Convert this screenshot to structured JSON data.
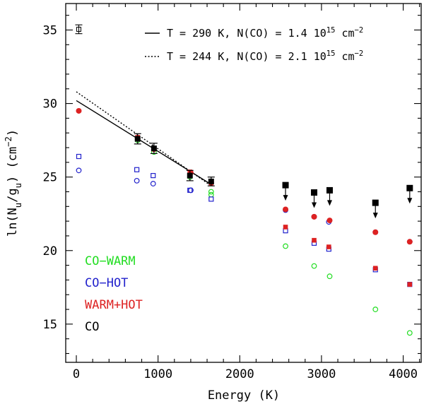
{
  "chart_data": {
    "type": "scatter",
    "xlabel": "Energy (K)",
    "ylabel_parts": [
      "ln(N",
      "u",
      "/g",
      "u",
      ") (cm",
      "−2",
      ")"
    ],
    "xlim": [
      -130,
      4220
    ],
    "ylim": [
      12.4,
      36.8
    ],
    "x_ticks": [
      0,
      1000,
      2000,
      3000,
      4000
    ],
    "y_ticks": [
      15,
      20,
      25,
      30,
      35
    ],
    "x_minor_step": 200,
    "y_minor_step": 1,
    "grid": false,
    "fit_lines": [
      {
        "style": "solid",
        "label_parts": [
          "T = 290 K, N(CO) = 1.4 10",
          "15",
          " cm",
          "−2"
        ],
        "points": [
          [
            0,
            30.2
          ],
          [
            1650,
            24.5
          ]
        ]
      },
      {
        "style": "dotted",
        "label_parts": [
          "T = 244 K, N(CO) = 2.1 10",
          "15",
          " cm",
          "−2"
        ],
        "points": [
          [
            0,
            30.8
          ],
          [
            1650,
            24.4
          ]
        ]
      }
    ],
    "series": [
      {
        "name": "CO-WARM",
        "color": "#22dd22",
        "marker": "open-circle",
        "points": [
          [
            750,
            27.5
          ],
          [
            950,
            26.7
          ],
          [
            1390,
            25.0
          ],
          [
            1650,
            24.0
          ],
          [
            1650,
            23.8
          ],
          [
            2560,
            20.3
          ],
          [
            2910,
            18.95
          ],
          [
            3100,
            18.25
          ],
          [
            3660,
            16.0
          ],
          [
            4080,
            14.4
          ]
        ]
      },
      {
        "name": "CO-HOT",
        "color": "#2222cc",
        "marker": "open-circle",
        "points": [
          [
            30,
            25.45
          ],
          [
            740,
            24.75
          ],
          [
            940,
            24.55
          ],
          [
            1400,
            24.1
          ],
          [
            1400,
            24.1
          ],
          [
            2560,
            22.75
          ],
          [
            2910,
            22.3
          ],
          [
            3090,
            21.95
          ],
          [
            3660,
            21.25
          ],
          [
            4080,
            20.6
          ]
        ]
      },
      {
        "name": "CO-HOT",
        "color": "#2222cc",
        "marker": "open-square",
        "points": [
          [
            30,
            26.4
          ],
          [
            740,
            25.5
          ],
          [
            940,
            25.1
          ],
          [
            1390,
            24.1
          ],
          [
            1650,
            23.5
          ],
          [
            2560,
            21.35
          ],
          [
            2910,
            20.5
          ],
          [
            3090,
            20.1
          ],
          [
            3660,
            18.7
          ],
          [
            4080,
            17.7
          ]
        ]
      },
      {
        "name": "WARM+HOT",
        "color": "#dd2222",
        "marker": "filled-circle",
        "points": [
          [
            30,
            29.5
          ],
          [
            750,
            27.6
          ],
          [
            950,
            26.9
          ],
          [
            1400,
            25.3
          ],
          [
            1650,
            24.6
          ],
          [
            2560,
            22.8
          ],
          [
            2910,
            22.3
          ],
          [
            3100,
            22.05
          ],
          [
            3660,
            21.25
          ],
          [
            4080,
            20.6
          ]
        ]
      },
      {
        "name": "WARM+HOT",
        "color": "#dd2222",
        "marker": "filled-square",
        "points": [
          [
            750,
            27.7
          ],
          [
            950,
            26.9
          ],
          [
            1390,
            25.35
          ],
          [
            1650,
            24.6
          ],
          [
            2560,
            21.6
          ],
          [
            2910,
            20.7
          ],
          [
            3090,
            20.25
          ],
          [
            3660,
            18.8
          ],
          [
            4080,
            17.7
          ]
        ]
      },
      {
        "name": "CO",
        "color": "#000000",
        "marker": "filled-square-errorbar",
        "points": [
          [
            750,
            27.6,
            0.35
          ],
          [
            950,
            26.95,
            0.35
          ],
          [
            1390,
            25.1,
            0.35
          ],
          [
            1650,
            24.7,
            0.3
          ]
        ]
      },
      {
        "name": "CO",
        "color": "#000000",
        "marker": "filled-square-upper-limit",
        "points": [
          [
            2560,
            24.45
          ],
          [
            2910,
            23.95
          ],
          [
            3100,
            24.1
          ],
          [
            3660,
            23.25
          ],
          [
            4080,
            24.25
          ]
        ]
      }
    ],
    "error_bar_reference": {
      "x": 30,
      "y": 35.05,
      "err": 0.3
    },
    "group_labels": [
      {
        "text": "CO−WARM",
        "color": "#22dd22"
      },
      {
        "text": "CO−HOT",
        "color": "#2222cc"
      },
      {
        "text": "WARM+HOT",
        "color": "#dd2222"
      },
      {
        "text": "CO",
        "color": "#000000"
      }
    ]
  }
}
